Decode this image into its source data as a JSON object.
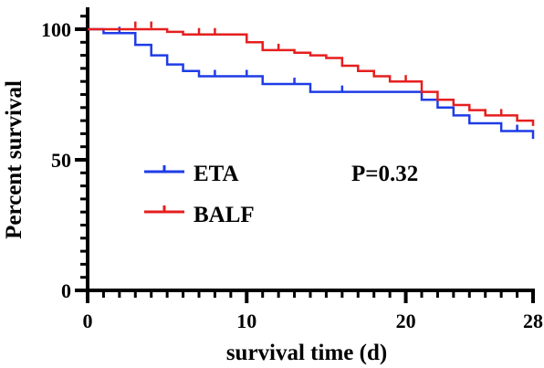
{
  "chart_data": {
    "type": "line",
    "subtype": "kaplan-meier step",
    "title": "",
    "xlabel": "survival time (d)",
    "ylabel": "Percent survival",
    "xlim": [
      0,
      28
    ],
    "ylim": [
      0,
      100
    ],
    "x_ticks": [
      "0",
      "10",
      "20",
      "28"
    ],
    "y_ticks": [
      "0",
      "50",
      "100"
    ],
    "grid": false,
    "legend_position": "center-left",
    "annotation": "P=0.32",
    "series": [
      {
        "name": "ETA",
        "color": "#1f3ce6",
        "steps": [
          [
            0,
            100
          ],
          [
            1,
            98.5
          ],
          [
            3,
            94
          ],
          [
            4,
            90
          ],
          [
            5,
            86.5
          ],
          [
            6,
            84
          ],
          [
            7,
            82
          ],
          [
            11,
            79
          ],
          [
            14,
            76
          ],
          [
            21,
            73
          ],
          [
            22,
            70
          ],
          [
            23,
            67
          ],
          [
            24,
            64
          ],
          [
            26,
            61
          ],
          [
            28,
            58
          ]
        ],
        "censored": [
          [
            2,
            98.5
          ],
          [
            8,
            82
          ],
          [
            10,
            82
          ],
          [
            13,
            79
          ],
          [
            16,
            76
          ],
          [
            27,
            61
          ]
        ]
      },
      {
        "name": "BALF",
        "color": "#e61e1e",
        "steps": [
          [
            0,
            100
          ],
          [
            5,
            99
          ],
          [
            6,
            98
          ],
          [
            10,
            95
          ],
          [
            11,
            92
          ],
          [
            13,
            91
          ],
          [
            14,
            90
          ],
          [
            15,
            89
          ],
          [
            16,
            86
          ],
          [
            17,
            84
          ],
          [
            18,
            82
          ],
          [
            19,
            80
          ],
          [
            21,
            76
          ],
          [
            22,
            73
          ],
          [
            23,
            71
          ],
          [
            24,
            69
          ],
          [
            25,
            67
          ],
          [
            27,
            65
          ],
          [
            28,
            63
          ]
        ],
        "censored": [
          [
            3,
            100.5
          ],
          [
            4,
            100.5
          ],
          [
            7,
            98
          ],
          [
            8,
            98
          ],
          [
            12,
            92
          ],
          [
            18,
            82
          ],
          [
            20,
            80
          ],
          [
            25,
            67
          ],
          [
            26,
            67
          ]
        ]
      }
    ]
  }
}
